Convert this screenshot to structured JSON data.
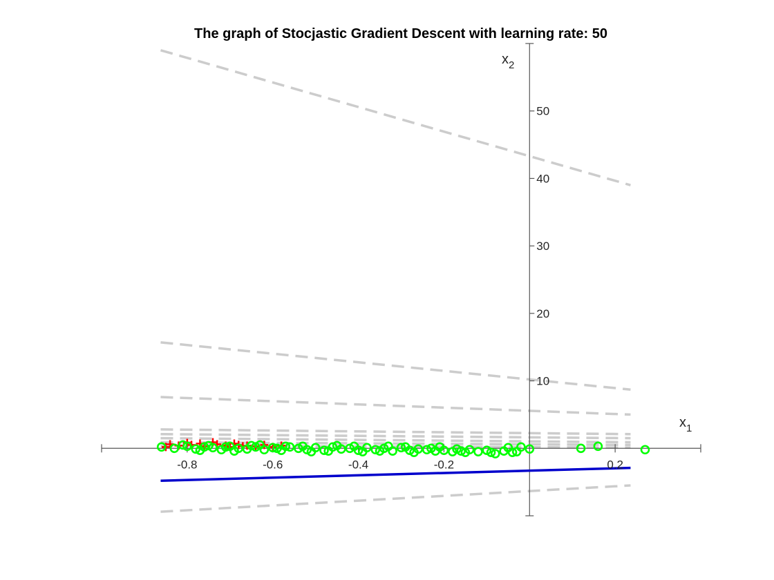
{
  "chart_data": {
    "type": "scatter",
    "title": "The graph of Stocjastic Gradient Descent with learning rate: 50",
    "xlabel": "x",
    "xlabel_sub": "1",
    "ylabel": "x",
    "ylabel_sub": "2",
    "xlim": [
      -1.0,
      0.4
    ],
    "ylim": [
      -10,
      60
    ],
    "axis_location": "origin",
    "grid": false,
    "x_ticks": [
      -0.8,
      -0.6,
      -0.4,
      -0.2,
      0.2
    ],
    "x_tick_labels": [
      "-0.8",
      "-0.6",
      "-0.4",
      "-0.2",
      "0.2"
    ],
    "y_ticks": [
      10,
      20,
      30,
      40,
      50
    ],
    "y_tick_labels": [
      "10",
      "20",
      "30",
      "40",
      "50"
    ],
    "colors": {
      "intermediate_boundary": "#cccccc",
      "final_boundary": "#0000cc",
      "positive_class": "#ff0000",
      "negative_class": "#00ff00",
      "axis": "#555555"
    },
    "boundary_x_range": [
      -0.862,
      0.236
    ],
    "intermediate_boundaries": [
      {
        "y_at_start": 59.0,
        "y_at_end": 39.0
      },
      {
        "y_at_start": 15.7,
        "y_at_end": 8.7
      },
      {
        "y_at_start": 7.6,
        "y_at_end": 5.0
      },
      {
        "y_at_start": 2.8,
        "y_at_end": 2.1
      },
      {
        "y_at_start": 2.1,
        "y_at_end": 1.5
      },
      {
        "y_at_start": 1.5,
        "y_at_end": 0.9
      },
      {
        "y_at_start": 0.9,
        "y_at_end": 0.5
      },
      {
        "y_at_start": 0.4,
        "y_at_end": 0.1
      },
      {
        "y_at_start": -9.4,
        "y_at_end": -5.5
      }
    ],
    "final_boundary": {
      "y_at_start": -4.8,
      "y_at_end": -2.9
    },
    "series": [
      {
        "marker": "+",
        "x": [
          -0.85,
          -0.82,
          -0.79,
          -0.76,
          -0.73,
          -0.7,
          -0.68,
          -0.66,
          -0.64,
          -0.62,
          -0.6,
          -0.58,
          -0.84,
          -0.8,
          -0.77,
          -0.74,
          -0.71,
          -0.69,
          -0.67
        ],
        "y": [
          0.2,
          0.4,
          0.5,
          0.3,
          0.6,
          0.2,
          0.5,
          0.4,
          0.3,
          0.5,
          0.2,
          0.4,
          0.6,
          0.8,
          0.7,
          0.9,
          0.4,
          0.7,
          0.3
        ]
      },
      {
        "marker": "o",
        "x": [
          -0.86,
          -0.83,
          -0.8,
          -0.78,
          -0.76,
          -0.74,
          -0.72,
          -0.7,
          -0.68,
          -0.66,
          -0.64,
          -0.62,
          -0.6,
          -0.58,
          -0.56,
          -0.54,
          -0.52,
          -0.5,
          -0.48,
          -0.46,
          -0.44,
          -0.42,
          -0.4,
          -0.38,
          -0.36,
          -0.34,
          -0.32,
          -0.3,
          -0.28,
          -0.26,
          -0.24,
          -0.22,
          -0.2,
          -0.18,
          -0.16,
          -0.14,
          -0.12,
          -0.1,
          -0.08,
          -0.06,
          -0.04,
          -0.02,
          0.0,
          0.12,
          0.16,
          0.27,
          -0.81,
          -0.75,
          -0.69,
          -0.63,
          -0.57,
          -0.51,
          -0.45,
          -0.39,
          -0.33,
          -0.27,
          -0.21,
          -0.15,
          -0.77,
          -0.71,
          -0.65,
          -0.59,
          -0.53,
          -0.47,
          -0.41,
          -0.35,
          -0.29,
          -0.23,
          -0.17,
          -0.09,
          -0.05,
          -0.03
        ],
        "y": [
          0.2,
          0.0,
          0.3,
          -0.1,
          0.2,
          0.1,
          -0.2,
          0.3,
          0.0,
          -0.1,
          0.2,
          -0.2,
          0.1,
          -0.3,
          0.2,
          0.0,
          -0.2,
          0.1,
          -0.3,
          0.2,
          -0.1,
          0.0,
          -0.3,
          0.1,
          -0.2,
          0.0,
          -0.4,
          0.1,
          -0.3,
          -0.1,
          -0.2,
          -0.4,
          -0.3,
          -0.5,
          -0.4,
          -0.2,
          -0.5,
          -0.3,
          -0.8,
          -0.4,
          -0.6,
          0.2,
          -0.1,
          0.0,
          0.3,
          -0.2,
          0.5,
          0.4,
          -0.4,
          0.5,
          0.3,
          -0.5,
          0.4,
          -0.5,
          0.3,
          -0.6,
          0.2,
          -0.6,
          -0.3,
          0.2,
          0.4,
          0.0,
          0.3,
          -0.4,
          0.3,
          -0.4,
          0.2,
          0.0,
          -0.1,
          -0.6,
          0.1,
          -0.5
        ]
      }
    ]
  }
}
